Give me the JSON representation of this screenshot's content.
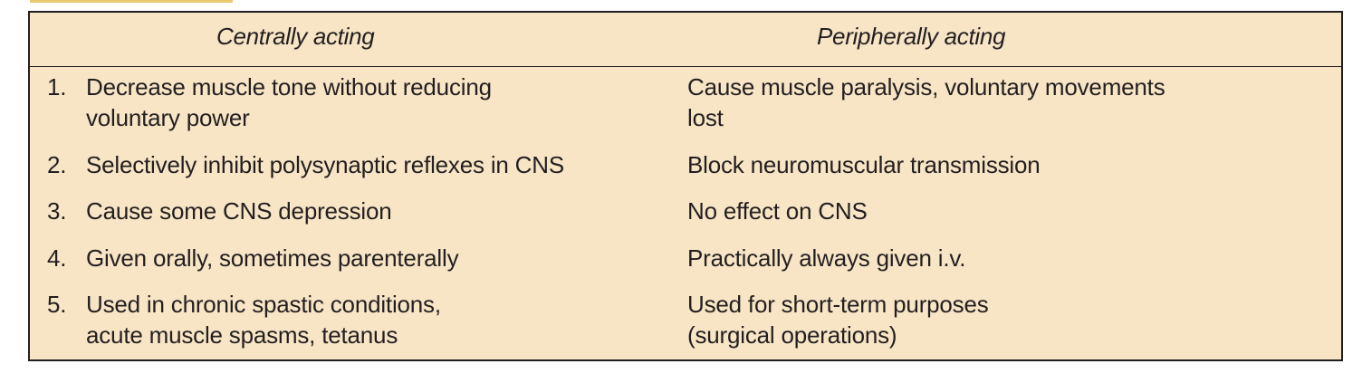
{
  "headers": {
    "left": "Centrally acting",
    "right": "Peripherally acting"
  },
  "rows": [
    {
      "num": "1.",
      "left": [
        "Decrease muscle tone without reducing",
        "voluntary power"
      ],
      "right": [
        "Cause muscle paralysis, voluntary movements",
        "lost"
      ]
    },
    {
      "num": "2.",
      "left": [
        "Selectively inhibit polysynaptic reflexes in CNS"
      ],
      "right": [
        "Block neuromuscular transmission"
      ]
    },
    {
      "num": "3.",
      "left": [
        "Cause some CNS depression"
      ],
      "right": [
        "No effect on CNS"
      ]
    },
    {
      "num": "4.",
      "left": [
        "Given orally, sometimes parenterally"
      ],
      "right": [
        "Practically always given i.v."
      ]
    },
    {
      "num": "5.",
      "left": [
        "Used in chronic spastic conditions,",
        "acute muscle spasms, tetanus"
      ],
      "right": [
        "Used for short-term purposes",
        "(surgical operations)"
      ]
    }
  ]
}
